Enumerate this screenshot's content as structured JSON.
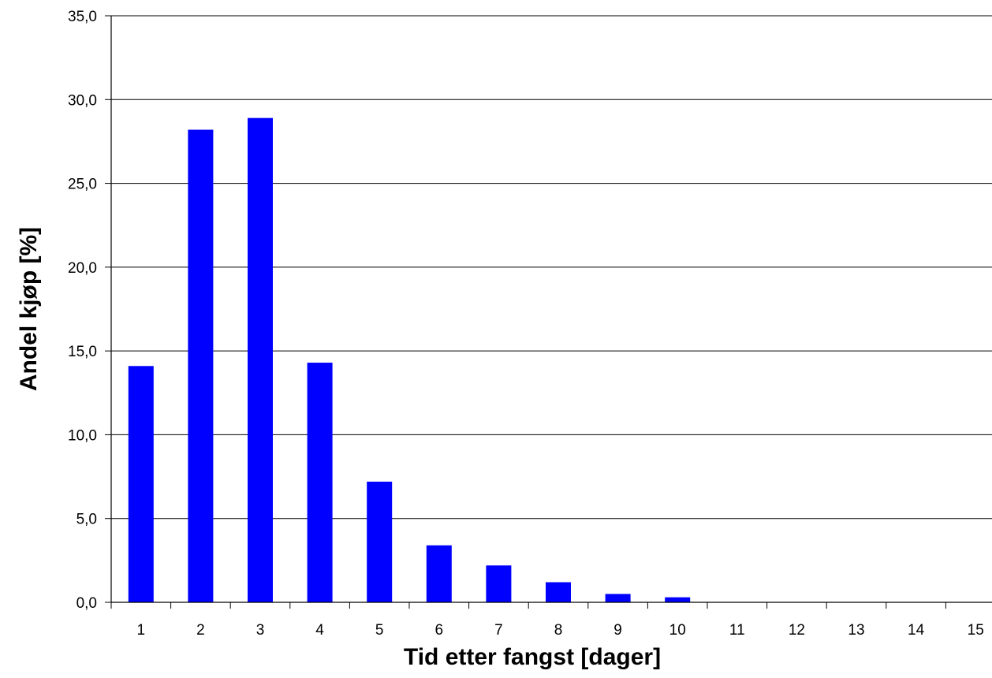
{
  "chart_data": {
    "type": "bar",
    "title": "",
    "xlabel": "Tid etter fangst [dager]",
    "ylabel": "Andel kjøp [%]",
    "categories": [
      "1",
      "2",
      "3",
      "4",
      "5",
      "6",
      "7",
      "8",
      "9",
      "10",
      "11",
      "12",
      "13",
      "14",
      "15"
    ],
    "values": [
      14.1,
      28.2,
      28.9,
      14.3,
      7.2,
      3.4,
      2.2,
      1.2,
      0.5,
      0.3,
      0,
      0,
      0,
      0,
      0
    ],
    "ylim": [
      0,
      35
    ],
    "yticks": [
      "0,0",
      "5,0",
      "10,0",
      "15,0",
      "20,0",
      "25,0",
      "30,0",
      "35,0"
    ],
    "grid": true,
    "legend": "none",
    "colors": {
      "bar": "#0000ff",
      "grid": "#000000",
      "axis": "#000000"
    }
  }
}
